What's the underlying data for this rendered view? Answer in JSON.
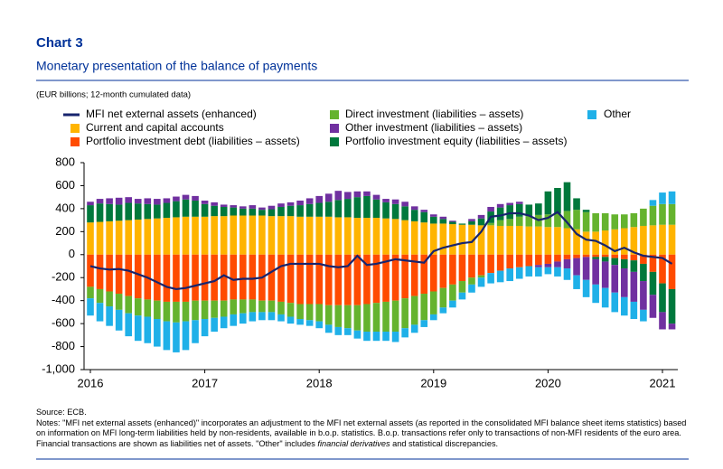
{
  "chart_data": {
    "type": "bar",
    "stacked": true,
    "title": "Chart 3",
    "subtitle": "Monetary presentation of the balance of payments",
    "unit_note": "(EUR billions; 12-month cumulated data)",
    "categories": [
      "2016",
      null,
      null,
      null,
      null,
      null,
      null,
      null,
      null,
      null,
      null,
      null,
      "2017",
      null,
      null,
      null,
      null,
      null,
      null,
      null,
      null,
      null,
      null,
      null,
      "2018",
      null,
      null,
      null,
      null,
      null,
      null,
      null,
      null,
      null,
      null,
      null,
      "2019",
      null,
      null,
      null,
      null,
      null,
      null,
      null,
      null,
      null,
      null,
      null,
      "2020",
      null,
      null,
      null,
      null,
      null,
      null,
      null,
      null,
      null,
      null,
      null,
      "2021",
      null
    ],
    "ylim": [
      -1000,
      800
    ],
    "yticks": [
      {
        "value": -1000,
        "label": "-1,000"
      },
      -800,
      -600,
      -400,
      -200,
      0,
      200,
      400,
      600,
      800
    ],
    "series": [
      {
        "name": "Current and capital accounts",
        "color": "#ffb400",
        "values": [
          280,
          285,
          290,
          295,
          300,
          305,
          310,
          315,
          320,
          325,
          330,
          330,
          330,
          335,
          335,
          340,
          340,
          340,
          340,
          335,
          335,
          335,
          330,
          330,
          330,
          330,
          325,
          325,
          320,
          320,
          320,
          315,
          310,
          300,
          290,
          280,
          270,
          270,
          265,
          260,
          260,
          255,
          255,
          250,
          250,
          250,
          245,
          245,
          240,
          240,
          230,
          220,
          200,
          200,
          210,
          220,
          230,
          240,
          250,
          255,
          260,
          260
        ]
      },
      {
        "name": "Portfolio investment debt (liabilities – assets)",
        "color": "#ff4b00",
        "values": [
          -280,
          -300,
          -320,
          -340,
          -360,
          -380,
          -390,
          -400,
          -410,
          -410,
          -410,
          -400,
          -400,
          -400,
          -400,
          -390,
          -390,
          -390,
          -400,
          -400,
          -410,
          -420,
          -430,
          -430,
          -430,
          -440,
          -440,
          -440,
          -440,
          -430,
          -420,
          -410,
          -400,
          -380,
          -360,
          -340,
          -320,
          -290,
          -260,
          -230,
          -200,
          -180,
          -160,
          -140,
          -120,
          -110,
          -100,
          -90,
          -80,
          -60,
          -40,
          -30,
          -20,
          -20,
          -20,
          -30,
          -40,
          -50,
          -80,
          -150,
          -250,
          -300
        ]
      },
      {
        "name": "Direct investment (liabilities – assets)",
        "color": "#65b32e",
        "values": [
          -100,
          -120,
          -130,
          -140,
          -150,
          -150,
          -150,
          -160,
          -170,
          -180,
          -170,
          -170,
          -160,
          -150,
          -140,
          -130,
          -120,
          -110,
          -100,
          -100,
          -110,
          -120,
          -130,
          -140,
          -150,
          -170,
          -190,
          -200,
          -220,
          -240,
          -250,
          -260,
          -270,
          -260,
          -250,
          -230,
          -200,
          -170,
          -140,
          -100,
          -60,
          -20,
          20,
          50,
          60,
          80,
          90,
          100,
          110,
          120,
          150,
          170,
          170,
          160,
          150,
          130,
          120,
          120,
          150,
          170,
          180,
          180
        ]
      },
      {
        "name": "Portfolio investment equity (liabilities – assets)",
        "color": "#00783c",
        "values": [
          150,
          160,
          150,
          140,
          150,
          140,
          130,
          120,
          130,
          140,
          150,
          140,
          110,
          90,
          80,
          70,
          60,
          60,
          50,
          60,
          80,
          90,
          100,
          110,
          120,
          130,
          150,
          160,
          180,
          190,
          160,
          140,
          130,
          120,
          100,
          90,
          60,
          40,
          20,
          10,
          30,
          60,
          100,
          110,
          120,
          110,
          100,
          100,
          200,
          220,
          250,
          100,
          20,
          -20,
          -40,
          -60,
          -80,
          -100,
          -150,
          -200,
          -250,
          -300
        ]
      },
      {
        "name": "Other investment (liabilities – assets)",
        "color": "#7030a0",
        "values": [
          30,
          40,
          50,
          60,
          50,
          40,
          50,
          50,
          40,
          40,
          40,
          40,
          30,
          30,
          20,
          20,
          20,
          30,
          20,
          30,
          30,
          30,
          40,
          50,
          60,
          70,
          80,
          60,
          50,
          40,
          40,
          30,
          40,
          40,
          30,
          20,
          20,
          20,
          10,
          0,
          20,
          30,
          40,
          30,
          20,
          20,
          0,
          -20,
          -30,
          -50,
          -80,
          -150,
          -200,
          -220,
          -230,
          -240,
          -250,
          -260,
          -250,
          -200,
          -150,
          -50
        ]
      },
      {
        "name": "Other",
        "color": "#1fb0e8",
        "values": [
          -150,
          -160,
          -170,
          -180,
          -200,
          -220,
          -230,
          -240,
          -250,
          -260,
          -250,
          -200,
          -150,
          -120,
          -100,
          -100,
          -90,
          -80,
          -70,
          -70,
          -60,
          -60,
          -50,
          -50,
          -60,
          -70,
          -70,
          -60,
          -70,
          -80,
          -80,
          -80,
          -90,
          -80,
          -70,
          -60,
          -50,
          -50,
          -60,
          -60,
          -70,
          -80,
          -90,
          -100,
          -110,
          -100,
          -90,
          -80,
          -60,
          -80,
          -100,
          -120,
          -150,
          -160,
          -170,
          -170,
          -160,
          -150,
          -100,
          50,
          100,
          110
        ]
      },
      {
        "name": "MFI net external assets (enhanced)",
        "color": "#17246e",
        "type": "line",
        "values": [
          -100,
          -120,
          -130,
          -125,
          -140,
          -170,
          -200,
          -240,
          -280,
          -300,
          -290,
          -270,
          -250,
          -230,
          -180,
          -220,
          -210,
          -210,
          -200,
          -150,
          -100,
          -80,
          -80,
          -80,
          -80,
          -100,
          -110,
          -100,
          -10,
          -90,
          -80,
          -60,
          -40,
          -50,
          -60,
          -70,
          30,
          60,
          80,
          100,
          110,
          200,
          330,
          340,
          360,
          360,
          340,
          300,
          320,
          370,
          280,
          180,
          130,
          120,
          80,
          30,
          60,
          20,
          -10,
          -20,
          -30,
          -80
        ]
      }
    ],
    "source": "Source: ECB.",
    "notes": [
      "Notes: \"MFI net external assets (enhanced)\" incorporates an adjustment to the MFI net external assets (as reported in the consolidated MFI balance sheet items statistics) based on information on MFI long-term liabilities held by non-residents, available in b.o.p. statistics. B.o.p. transactions refer only to transactions of non-MFI residents of the euro area. Financial transactions are shown as liabilities net of assets. \"Other\" includes ",
      "financial derivatives",
      " and statistical discrepancies."
    ]
  }
}
